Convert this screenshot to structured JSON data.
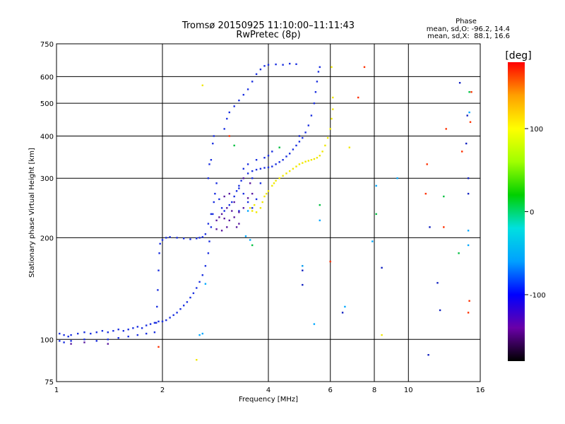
{
  "chart_data": {
    "type": "scatter",
    "title": "Tromsø 20150925 11:10:00–11:11:43",
    "subtitle": "RwPretec (8p)",
    "phase_box": {
      "title": "Phase",
      "line1": "mean, sd,O: -96.2, 14.4",
      "line2": "mean, sd,X:  88.1, 16.6"
    },
    "xlabel": "Frequency [MHz]",
    "ylabel": "Stationary phase Virtual Height [km]",
    "x_scale": "log",
    "y_scale": "log",
    "xlim": [
      1,
      16
    ],
    "ylim": [
      75,
      750
    ],
    "x_ticks": [
      1,
      2,
      4,
      6,
      8,
      10,
      16
    ],
    "x_tick_labels": [
      "1",
      "2",
      "4",
      "6",
      "8",
      "10",
      "16"
    ],
    "y_ticks": [
      75,
      100,
      200,
      300,
      400,
      500,
      600,
      750
    ],
    "y_tick_labels": [
      "75",
      "100",
      "200",
      "300",
      "400",
      "500",
      "600",
      "750"
    ],
    "grid": true,
    "colorbar": {
      "label": "[deg]",
      "range": [
        -180,
        180
      ],
      "ticks": [
        100,
        0,
        -100
      ],
      "tick_labels": [
        "100",
        "0",
        "-100"
      ],
      "colors": [
        "#000000",
        "#6a00a8",
        "#0000ff",
        "#00a0ff",
        "#00e0e0",
        "#00d000",
        "#a0ff00",
        "#ffff00",
        "#ffa000",
        "#ff0000"
      ]
    },
    "series": [
      {
        "phase": -110,
        "color": "#1a2fe0",
        "points": [
          [
            1.02,
            104
          ],
          [
            1.05,
            103
          ],
          [
            1.08,
            102
          ],
          [
            1.1,
            103
          ],
          [
            1.15,
            104
          ],
          [
            1.2,
            105
          ],
          [
            1.25,
            104
          ],
          [
            1.3,
            105
          ],
          [
            1.35,
            106
          ],
          [
            1.4,
            105
          ],
          [
            1.45,
            106
          ],
          [
            1.5,
            107
          ],
          [
            1.55,
            106
          ],
          [
            1.6,
            107
          ],
          [
            1.65,
            108
          ],
          [
            1.7,
            109
          ],
          [
            1.75,
            108
          ],
          [
            1.8,
            110
          ],
          [
            1.85,
            111
          ],
          [
            1.9,
            112
          ],
          [
            1.95,
            113
          ],
          [
            2.0,
            113
          ],
          [
            2.05,
            114
          ],
          [
            2.1,
            116
          ],
          [
            2.15,
            118
          ],
          [
            2.2,
            120
          ],
          [
            2.25,
            123
          ],
          [
            2.3,
            126
          ],
          [
            2.35,
            129
          ],
          [
            2.4,
            133
          ],
          [
            2.45,
            137
          ],
          [
            2.5,
            142
          ],
          [
            2.55,
            148
          ],
          [
            2.6,
            155
          ],
          [
            2.65,
            165
          ],
          [
            2.7,
            180
          ],
          [
            2.72,
            195
          ],
          [
            2.75,
            215
          ],
          [
            2.78,
            235
          ],
          [
            2.8,
            255
          ],
          [
            2.82,
            270
          ],
          [
            2.85,
            290
          ],
          [
            2.78,
            380
          ],
          [
            2.8,
            400
          ],
          [
            2.75,
            340
          ],
          [
            2.9,
            260
          ],
          [
            2.95,
            245
          ],
          [
            3.0,
            240
          ],
          [
            2.7,
            300
          ],
          [
            2.72,
            330
          ],
          [
            1.02,
            99
          ],
          [
            1.05,
            98
          ],
          [
            1.1,
            99
          ],
          [
            1.2,
            100
          ],
          [
            1.3,
            99
          ],
          [
            1.4,
            100
          ],
          [
            1.5,
            101
          ],
          [
            1.6,
            102
          ],
          [
            1.7,
            103
          ],
          [
            1.8,
            104
          ],
          [
            1.9,
            105
          ],
          [
            1.92,
            112
          ],
          [
            1.93,
            125
          ],
          [
            1.94,
            140
          ],
          [
            1.95,
            160
          ],
          [
            1.96,
            180
          ],
          [
            1.97,
            192
          ],
          [
            2.0,
            197
          ],
          [
            2.05,
            200
          ],
          [
            2.1,
            201
          ],
          [
            2.2,
            200
          ],
          [
            2.3,
            199
          ],
          [
            2.4,
            198
          ],
          [
            2.5,
            199
          ],
          [
            2.55,
            200
          ],
          [
            2.6,
            201
          ],
          [
            2.65,
            205
          ],
          [
            2.7,
            220
          ],
          [
            2.75,
            235
          ],
          [
            3.1,
            250
          ],
          [
            3.15,
            255
          ],
          [
            3.2,
            265
          ],
          [
            3.25,
            275
          ],
          [
            3.3,
            285
          ],
          [
            3.35,
            295
          ],
          [
            3.4,
            300
          ],
          [
            3.5,
            310
          ],
          [
            3.6,
            315
          ],
          [
            3.7,
            318
          ],
          [
            3.8,
            320
          ],
          [
            3.9,
            322
          ],
          [
            4.0,
            323
          ],
          [
            4.1,
            325
          ],
          [
            4.2,
            330
          ],
          [
            4.3,
            335
          ],
          [
            4.4,
            340
          ],
          [
            4.5,
            348
          ],
          [
            4.6,
            355
          ],
          [
            4.7,
            365
          ],
          [
            4.8,
            375
          ],
          [
            4.9,
            385
          ],
          [
            5.0,
            395
          ],
          [
            5.1,
            410
          ],
          [
            5.2,
            430
          ],
          [
            5.3,
            460
          ],
          [
            5.4,
            500
          ],
          [
            5.45,
            540
          ],
          [
            5.5,
            580
          ],
          [
            5.55,
            620
          ],
          [
            5.6,
            640
          ],
          [
            3.0,
            420
          ],
          [
            3.05,
            450
          ],
          [
            3.1,
            470
          ],
          [
            3.2,
            490
          ],
          [
            3.3,
            510
          ],
          [
            3.4,
            530
          ],
          [
            3.5,
            550
          ],
          [
            3.6,
            580
          ],
          [
            3.7,
            610
          ],
          [
            3.8,
            630
          ],
          [
            3.9,
            645
          ],
          [
            4.0,
            650
          ],
          [
            4.2,
            652
          ],
          [
            4.4,
            650
          ],
          [
            4.6,
            655
          ],
          [
            4.8,
            653
          ],
          [
            3.4,
            320
          ],
          [
            3.5,
            330
          ],
          [
            3.7,
            340
          ],
          [
            3.9,
            345
          ],
          [
            4.0,
            350
          ],
          [
            4.1,
            360
          ],
          [
            3.6,
            300
          ],
          [
            3.8,
            290
          ],
          [
            3.3,
            280
          ],
          [
            3.4,
            270
          ],
          [
            3.5,
            255
          ],
          [
            3.6,
            245
          ],
          [
            3.7,
            260
          ],
          [
            3.3,
            240
          ]
        ]
      },
      {
        "phase": -150,
        "color": "#5a1aa0",
        "points": [
          [
            2.85,
            225
          ],
          [
            2.9,
            230
          ],
          [
            2.95,
            235
          ],
          [
            3.0,
            228
          ],
          [
            3.05,
            215
          ],
          [
            3.1,
            225
          ],
          [
            3.2,
            230
          ],
          [
            3.3,
            238
          ],
          [
            3.4,
            245
          ],
          [
            3.5,
            262
          ],
          [
            3.6,
            270
          ],
          [
            3.0,
            265
          ],
          [
            3.1,
            270
          ],
          [
            3.25,
            215
          ],
          [
            3.3,
            220
          ],
          [
            3.15,
            240
          ],
          [
            2.95,
            210
          ],
          [
            3.05,
            245
          ],
          [
            1.1,
            97
          ],
          [
            1.2,
            98
          ],
          [
            1.4,
            97
          ],
          [
            2.85,
            212
          ],
          [
            3.4,
            300
          ],
          [
            3.55,
            290
          ],
          [
            3.2,
            255
          ]
        ]
      },
      {
        "phase": 100,
        "color": "#f0e800",
        "points": [
          [
            3.55,
            245
          ],
          [
            3.6,
            240
          ],
          [
            3.7,
            238
          ],
          [
            3.8,
            245
          ],
          [
            3.85,
            255
          ],
          [
            3.9,
            265
          ],
          [
            4.0,
            275
          ],
          [
            4.1,
            285
          ],
          [
            4.2,
            295
          ],
          [
            4.3,
            300
          ],
          [
            4.4,
            305
          ],
          [
            4.5,
            310
          ],
          [
            4.6,
            315
          ],
          [
            4.7,
            320
          ],
          [
            4.8,
            325
          ],
          [
            4.9,
            330
          ],
          [
            5.0,
            333
          ],
          [
            5.1,
            336
          ],
          [
            5.2,
            338
          ],
          [
            5.3,
            340
          ],
          [
            5.4,
            342
          ],
          [
            5.5,
            345
          ],
          [
            5.6,
            350
          ],
          [
            5.7,
            360
          ],
          [
            5.8,
            375
          ],
          [
            5.9,
            395
          ],
          [
            6.0,
            420
          ],
          [
            6.05,
            450
          ],
          [
            6.1,
            480
          ],
          [
            6.1,
            520
          ],
          [
            3.65,
            250
          ],
          [
            3.95,
            270
          ],
          [
            4.15,
            290
          ],
          [
            6.05,
            640
          ],
          [
            2.6,
            565
          ],
          [
            2.5,
            87
          ],
          [
            8.4,
            103
          ],
          [
            6.8,
            370
          ]
        ]
      },
      {
        "phase": 150,
        "color": "#ff3000",
        "points": [
          [
            7.2,
            520
          ],
          [
            7.5,
            640
          ],
          [
            6.0,
            170
          ],
          [
            5.0,
            165
          ],
          [
            3.1,
            400
          ],
          [
            11.3,
            330
          ],
          [
            11.2,
            270
          ],
          [
            12.6,
            215
          ],
          [
            12.8,
            420
          ],
          [
            14.8,
            120
          ],
          [
            14.9,
            130
          ],
          [
            14.2,
            360
          ],
          [
            15.0,
            440
          ],
          [
            15.1,
            540
          ],
          [
            1.95,
            95
          ]
        ]
      },
      {
        "phase": 0,
        "color": "#00c040",
        "points": [
          [
            3.2,
            375
          ],
          [
            3.6,
            190
          ],
          [
            5.6,
            250
          ],
          [
            8.1,
            235
          ],
          [
            12.6,
            265
          ],
          [
            13.9,
            180
          ],
          [
            14.9,
            540
          ],
          [
            4.3,
            370
          ]
        ]
      },
      {
        "phase": -70,
        "color": "#00a8ff",
        "points": [
          [
            2.55,
            103
          ],
          [
            2.6,
            104
          ],
          [
            2.65,
            146
          ],
          [
            3.5,
            240
          ],
          [
            3.45,
            202
          ],
          [
            3.55,
            197
          ],
          [
            5.0,
            165
          ],
          [
            5.6,
            225
          ],
          [
            6.6,
            125
          ],
          [
            7.9,
            195
          ],
          [
            8.1,
            285
          ],
          [
            9.3,
            300
          ],
          [
            14.9,
            470
          ],
          [
            14.8,
            210
          ],
          [
            14.8,
            190
          ],
          [
            5.4,
            111
          ]
        ]
      },
      {
        "phase": -120,
        "color": "#1020c0",
        "points": [
          [
            5.0,
            160
          ],
          [
            5.0,
            145
          ],
          [
            8.4,
            163
          ],
          [
            12.3,
            122
          ],
          [
            12.1,
            147
          ],
          [
            14.7,
            460
          ],
          [
            14.8,
            300
          ],
          [
            14.6,
            380
          ],
          [
            14.8,
            270
          ],
          [
            11.5,
            215
          ],
          [
            11.4,
            90
          ],
          [
            14.0,
            575
          ],
          [
            4.9,
            400
          ],
          [
            6.5,
            120
          ]
        ]
      }
    ]
  }
}
